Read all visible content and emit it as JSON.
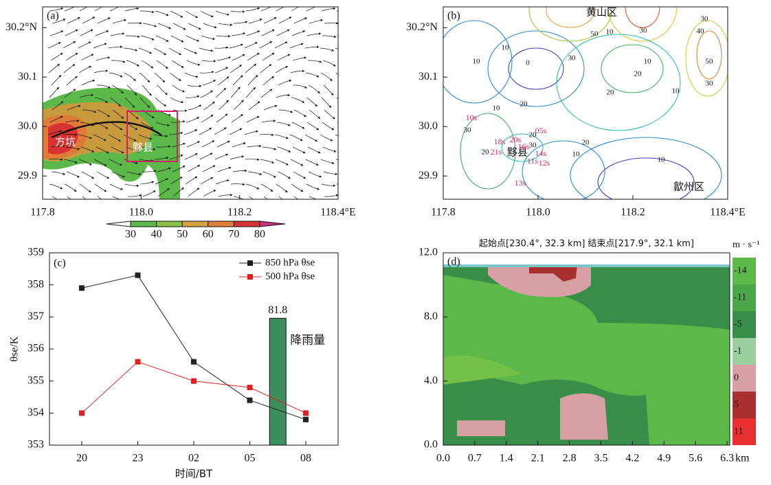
{
  "chart_data": [
    {
      "type": "streamline",
      "panel_label": "(a)",
      "xlim": [
        117.8,
        118.4
      ],
      "ylim": [
        29.853,
        30.242
      ],
      "xticks": [
        117.8,
        {
          "value": 118,
          "label": "118.0"
        },
        118.2,
        {
          "value": 118.4,
          "label": "118.4°E"
        }
      ],
      "yticks": [
        29.9,
        {
          "value": 30,
          "label": "30.0"
        },
        30.1,
        {
          "value": 30.2,
          "label": "30.2°N"
        }
      ],
      "annotations": [
        "方坑",
        "黟县"
      ],
      "colorbar": {
        "ticks": [
          30,
          40,
          50,
          60,
          70,
          80
        ],
        "colors": [
          "#5cb848",
          "#8cbf45",
          "#d6a43e",
          "#e0803a",
          "#d83232",
          "#c8328c"
        ]
      }
    },
    {
      "type": "contour",
      "panel_label": "(b)",
      "xlim": [
        117.8,
        118.4
      ],
      "ylim": [
        29.853,
        30.242
      ],
      "xticks": [
        117.8,
        {
          "value": 118,
          "label": "118.0"
        },
        118.2,
        {
          "value": 118.4,
          "label": "118.4°E"
        }
      ],
      "yticks": [
        29.9,
        {
          "value": 30,
          "label": "30.0"
        },
        30.1,
        {
          "value": 30.2,
          "label": "30.2°N"
        }
      ],
      "annotations": [
        "黄山区",
        "黟县",
        "歙州区"
      ],
      "contour_labels": [
        50,
        10,
        30,
        30,
        40,
        50,
        30,
        30,
        0,
        10,
        10,
        10,
        20,
        10,
        20,
        20,
        10,
        30,
        20,
        10,
        10,
        20,
        30,
        20
      ],
      "station_labels": [
        "10s",
        "18s",
        "20s",
        "05s",
        "21s",
        "16s",
        "14s",
        "11s",
        "12s",
        "13s"
      ]
    },
    {
      "type": "line",
      "panel_label": "(c)",
      "categories": [
        "20",
        "23",
        "02",
        "05",
        "08"
      ],
      "series": [
        {
          "name": "850 hPa θse",
          "color": "#222222",
          "values": [
            357.9,
            358.3,
            355.6,
            354.4,
            353.8
          ]
        },
        {
          "name": "500 hPa θse",
          "color": "#e02020",
          "values": [
            354.0,
            355.6,
            355.0,
            354.8,
            354.0
          ]
        }
      ],
      "bar": {
        "name": "降雨量",
        "value": 81.8,
        "color": "#3a8f5c",
        "axis": "y2"
      },
      "ylim": [
        353,
        359
      ],
      "yticks": [
        353,
        354,
        355,
        356,
        357,
        358,
        359
      ],
      "y2lim": [
        0,
        124
      ],
      "x_label": "时间/BT",
      "y_label": "θse/K"
    },
    {
      "type": "section",
      "panel_label": "(d)",
      "title": "起始点[230.4°, 32.3 km] 结束点[217.9°, 32.1 km]",
      "xlim": [
        0,
        6.36
      ],
      "ylim": [
        0,
        12
      ],
      "xticks": [
        {
          "value": 0,
          "label": "0.0"
        },
        0.7,
        1.4,
        2.1,
        2.8,
        3.5,
        4.2,
        4.9,
        5.6,
        6.3
      ],
      "yticks": [
        {
          "value": 0,
          "label": "0.0"
        },
        {
          "value": 4,
          "label": "4.0"
        },
        {
          "value": 8,
          "label": "8.0"
        },
        {
          "value": 12,
          "label": "12.0"
        }
      ],
      "x_unit": "km",
      "colorbar": {
        "unit": "m · s⁻¹",
        "ticks": [
          -14,
          -11,
          -5,
          -1,
          0,
          5,
          11
        ],
        "colors": [
          "#5cb848",
          "#4aa848",
          "#388e48",
          "#9ad0a0",
          "#d8a0a4",
          "#a83030",
          "#e83030"
        ]
      }
    }
  ]
}
